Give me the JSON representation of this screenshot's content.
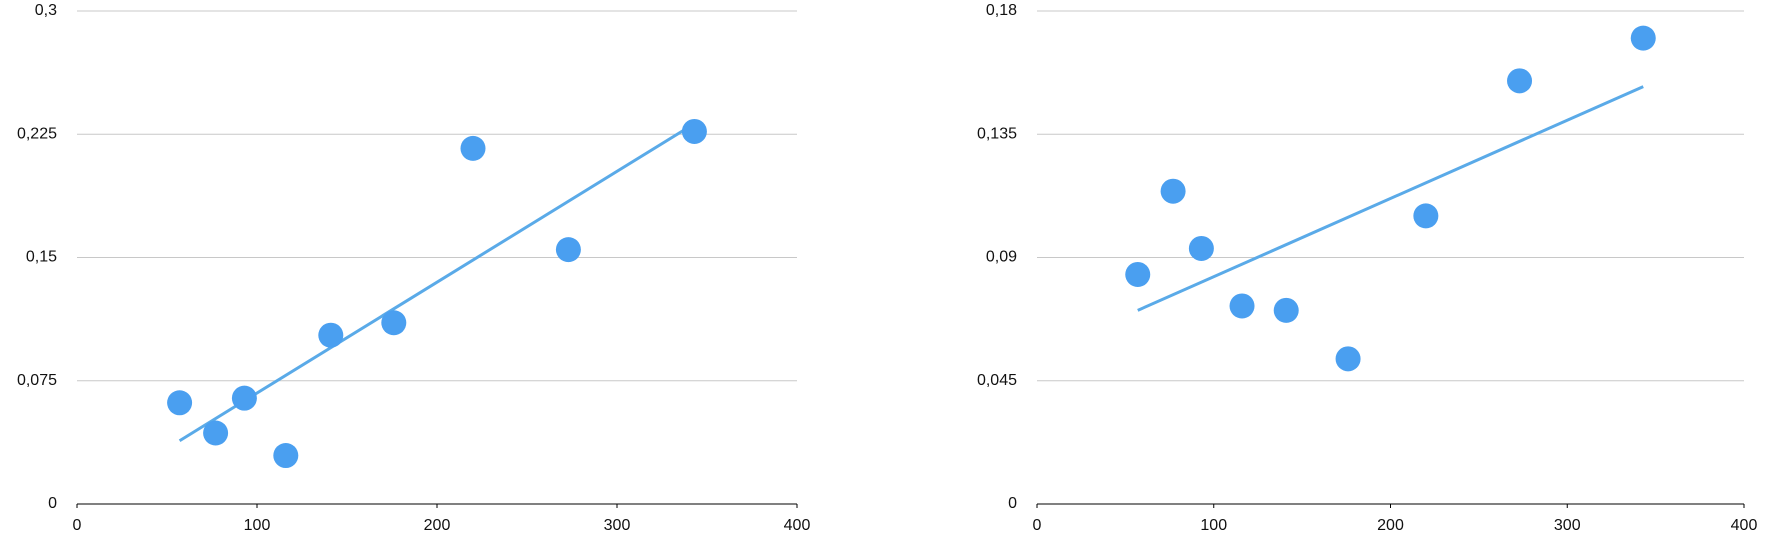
{
  "chart_data": [
    {
      "type": "scatter",
      "color": "#4a9ff0",
      "trendline": true,
      "trend_color": "#5aaae8",
      "grid": true,
      "x": [
        57,
        77,
        93,
        116,
        141,
        176,
        220,
        273,
        343
      ],
      "values": [
        0.0616,
        0.0432,
        0.0644,
        0.0295,
        0.1027,
        0.1103,
        0.2164,
        0.1548,
        0.2267
      ],
      "xlim": [
        0,
        400
      ],
      "xticks": [
        0,
        100,
        200,
        300,
        400
      ],
      "ylim": [
        0,
        0.3
      ],
      "yticks": [
        0,
        {
          "value": 0.075,
          "label": "0,075"
        },
        {
          "value": 0.15,
          "label": "0,15"
        },
        {
          "value": 0.225,
          "label": "0,225"
        },
        {
          "value": 0.3,
          "label": "0,3"
        }
      ]
    },
    {
      "type": "scatter",
      "color": "#4a9ff0",
      "trendline": true,
      "trend_color": "#5aaae8",
      "grid": true,
      "x": [
        57,
        77,
        93,
        116,
        141,
        176,
        220,
        273,
        343
      ],
      "values": [
        0.0838,
        0.1142,
        0.0933,
        0.0723,
        0.0707,
        0.053,
        0.1052,
        0.1545,
        0.1701
      ],
      "xlim": [
        0,
        400
      ],
      "xticks": [
        0,
        100,
        200,
        300,
        400
      ],
      "ylim": [
        0,
        0.18
      ],
      "yticks": [
        0,
        {
          "value": 0.045,
          "label": "0,045"
        },
        {
          "value": 0.09,
          "label": "0,09"
        },
        {
          "value": 0.135,
          "label": "0,135"
        },
        {
          "value": 0.18,
          "label": "0,18"
        }
      ]
    }
  ]
}
